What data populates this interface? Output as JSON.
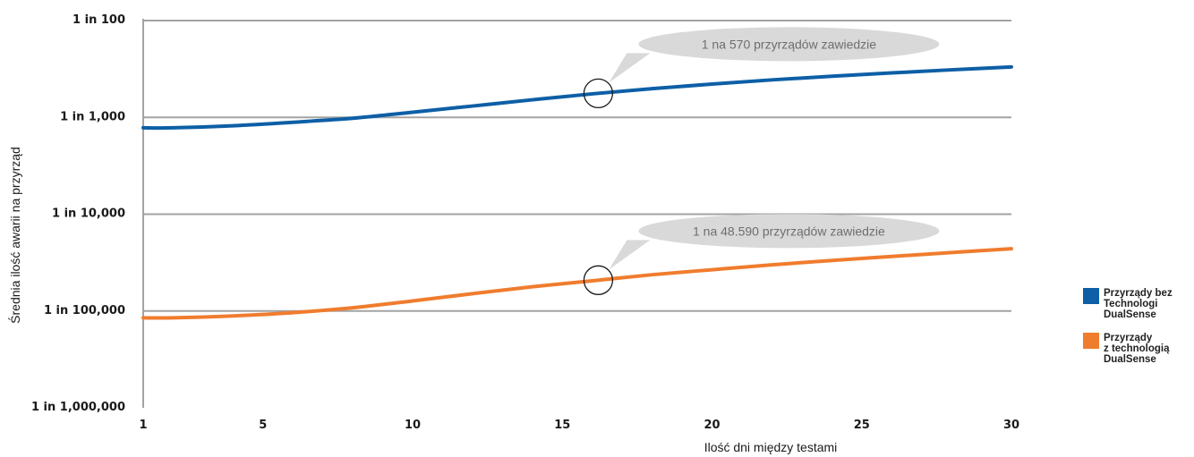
{
  "chart_data": {
    "type": "line",
    "xlabel": "Ilość dni między testami",
    "ylabel": "Średnia ilość awarii na przyrząd",
    "x_ticks": [
      1,
      5,
      10,
      15,
      20,
      25,
      30
    ],
    "xlim": [
      1,
      30
    ],
    "y_scale": "log",
    "y_ticks": [
      {
        "value": 0.01,
        "label": "1 in 100"
      },
      {
        "value": 0.001,
        "label": "1 in 1,000"
      },
      {
        "value": 0.0001,
        "label": "1 in 10,000"
      },
      {
        "value": 1e-05,
        "label": "1 in 100,000"
      },
      {
        "value": 1e-06,
        "label": "1 in 1,000,000"
      }
    ],
    "ylim": [
      1e-06,
      0.01
    ],
    "grid": true,
    "legend_position": "right",
    "series": [
      {
        "name": "Przyrządy bez\nTechnologi\nDualSense",
        "color": "#0d5fa6",
        "x": [
          1,
          2,
          4,
          6,
          8,
          10,
          12,
          14,
          16,
          18,
          20,
          22,
          24,
          26,
          28,
          30
        ],
        "y": [
          0.00078,
          0.00078,
          0.00082,
          0.00089,
          0.00098,
          0.00113,
          0.00131,
          0.00152,
          0.00175,
          0.00198,
          0.00221,
          0.00244,
          0.00266,
          0.00288,
          0.0031,
          0.00332
        ]
      },
      {
        "name": "Przyrządy\nz technologią\nDualSense",
        "color": "#f07c2e",
        "x": [
          1,
          2,
          4,
          6,
          8,
          10,
          12,
          14,
          16,
          18,
          20,
          22,
          24,
          26,
          28,
          30
        ],
        "y": [
          8.5e-06,
          8.5e-06,
          8.9e-06,
          9.6e-06,
          1.08e-05,
          1.27e-05,
          1.51e-05,
          1.78e-05,
          2.05e-05,
          2.37e-05,
          2.67e-05,
          3e-05,
          3.33e-05,
          3.66e-05,
          4.02e-05,
          4.4e-05
        ]
      }
    ],
    "annotations": [
      {
        "text": "1 na 570 przyrządów zawiedzie",
        "x": 16.2,
        "series": 0
      },
      {
        "text": "1 na 48.590 przyrządów zawiedzie",
        "x": 16.2,
        "series": 1
      }
    ]
  }
}
